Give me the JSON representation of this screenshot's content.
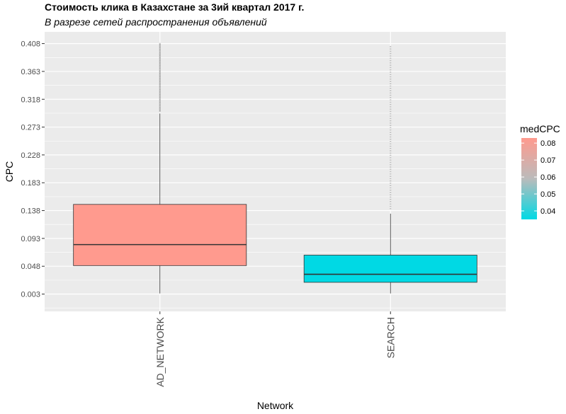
{
  "chart_data": {
    "type": "boxplot",
    "title": "Стоимость клика в Казахстане за 3ий квартал 2017 г.",
    "subtitle": "В разрезе сетей распространения объявлений",
    "xlabel": "Network",
    "ylabel": "CPC",
    "categories": [
      "AD_NETWORK",
      "SEARCH"
    ],
    "y_ticks": [
      "0.003",
      "0.048",
      "0.093",
      "0.138",
      "0.183",
      "0.228",
      "0.273",
      "0.318",
      "0.363",
      "0.408"
    ],
    "ylim": [
      -0.025,
      0.427
    ],
    "grid": true,
    "boxes": [
      {
        "category": "AD_NETWORK",
        "min": 0.004,
        "q1": 0.049,
        "median": 0.083,
        "q3": 0.148,
        "max": 0.295,
        "outlier_max": 0.408,
        "medCPC": 0.083
      },
      {
        "category": "SEARCH",
        "min": 0.004,
        "q1": 0.022,
        "median": 0.035,
        "q3": 0.066,
        "max": 0.133,
        "outlier_max": 0.403,
        "medCPC": 0.035
      }
    ],
    "legend": {
      "title": "medCPC",
      "position": "right",
      "labels": [
        "0.08",
        "0.07",
        "0.06",
        "0.05",
        "0.04"
      ],
      "values": [
        0.08,
        0.07,
        0.06,
        0.05,
        0.04
      ],
      "range": [
        0.035,
        0.083
      ],
      "low_color": "#00d9e4",
      "mid_color": "#bbbbbb",
      "high_color": "#ff9a8e"
    },
    "panel_color": "#ebebeb",
    "grid_color": "#ffffff"
  }
}
